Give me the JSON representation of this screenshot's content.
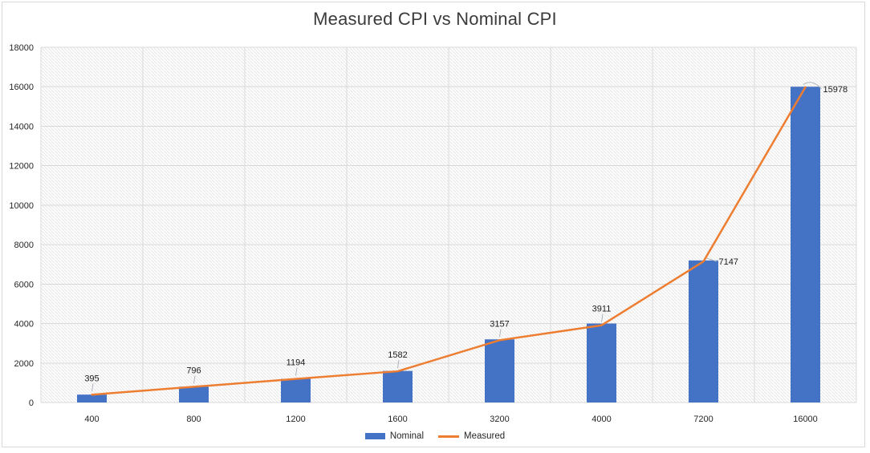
{
  "chart_data": {
    "type": "combo-bar-line",
    "title": "Measured CPI vs Nominal CPI",
    "categories": [
      "400",
      "800",
      "1200",
      "1600",
      "3200",
      "4000",
      "7200",
      "16000"
    ],
    "series": [
      {
        "name": "Nominal",
        "type": "bar",
        "color": "#4472C4",
        "values": [
          400,
          800,
          1200,
          1600,
          3200,
          4000,
          7200,
          16000
        ]
      },
      {
        "name": "Measured",
        "type": "line",
        "color": "#ED7D31",
        "values": [
          395,
          796,
          1194,
          1582,
          3157,
          3911,
          7147,
          15978
        ],
        "data_labels": [
          "395",
          "796",
          "1194",
          "1582",
          "3157",
          "3911",
          "7147",
          "15978"
        ],
        "label_positions": [
          "above",
          "above",
          "above",
          "above",
          "above",
          "above",
          "right",
          "right"
        ]
      }
    ],
    "xlabel": "",
    "ylabel": "",
    "ylim": [
      0,
      18000
    ],
    "ytick_interval": 2000,
    "yticks": [
      "0",
      "2000",
      "4000",
      "6000",
      "8000",
      "10000",
      "12000",
      "14000",
      "16000",
      "18000"
    ],
    "grid": {
      "horizontal": true,
      "vertical": true
    },
    "legend_position": "bottom-center",
    "plot_background": "diagonal-hatch",
    "colors": {
      "grid": "#d9d9d9",
      "hatch": "#e5e5e5",
      "tick_text": "#262626",
      "title_text": "#3b3b3b",
      "leader_line": "#aeb4bd",
      "frame_border": "#d9d9d9"
    }
  }
}
